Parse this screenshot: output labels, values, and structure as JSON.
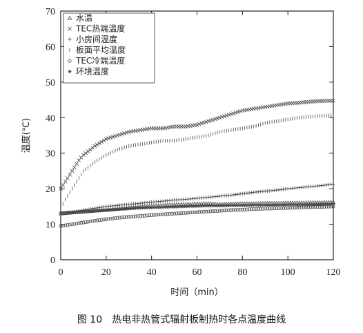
{
  "chart_data": {
    "type": "scatter",
    "xlabel": "时间（min）",
    "ylabel": "温度(℃)",
    "xlim": [
      0,
      120
    ],
    "ylim": [
      0,
      70
    ],
    "xticks": [
      0,
      20,
      40,
      60,
      80,
      100,
      120
    ],
    "yticks": [
      0,
      10,
      20,
      30,
      40,
      50,
      60,
      70
    ],
    "grid": false,
    "legend_position": "top-left",
    "series": [
      {
        "name": "水温",
        "marker": "triangle",
        "x": [
          0,
          5,
          10,
          15,
          20,
          25,
          30,
          35,
          40,
          45,
          50,
          55,
          60,
          65,
          70,
          75,
          80,
          85,
          90,
          95,
          100,
          105,
          110,
          115,
          120
        ],
        "y": [
          13,
          13.3,
          13.5,
          13.8,
          14,
          14.3,
          14.6,
          14.9,
          15.1,
          15.3,
          15.5,
          15.6,
          15.7,
          15.8,
          15.6,
          15.7,
          15.8,
          15.8,
          15.9,
          15.9,
          16,
          16,
          16.1,
          16.1,
          16.2
        ]
      },
      {
        "name": "TEC热端温度",
        "marker": "x",
        "x": [
          0,
          2,
          5,
          8,
          10,
          15,
          20,
          25,
          30,
          35,
          40,
          45,
          50,
          55,
          60,
          65,
          70,
          75,
          80,
          85,
          90,
          95,
          100,
          105,
          110,
          115,
          120
        ],
        "y": [
          20,
          22,
          25,
          28,
          29.5,
          32,
          34,
          35,
          36,
          36.5,
          37,
          37,
          37.5,
          37.5,
          38,
          39,
          40,
          41,
          42,
          42.5,
          43,
          43.5,
          44,
          44.2,
          44.5,
          44.7,
          44.8
        ]
      },
      {
        "name": "小房间温度",
        "marker": "plus",
        "x": [
          0,
          5,
          10,
          15,
          20,
          25,
          30,
          35,
          40,
          45,
          50,
          55,
          60,
          65,
          70,
          75,
          80,
          85,
          90,
          95,
          100,
          105,
          110,
          115,
          120
        ],
        "y": [
          13,
          13.5,
          14,
          14.5,
          15,
          15.3,
          15.6,
          15.9,
          16.2,
          16.5,
          16.8,
          17,
          17.3,
          17.6,
          17.9,
          18.2,
          18.6,
          19,
          19.3,
          19.6,
          20,
          20.3,
          20.6,
          20.9,
          21.3
        ]
      },
      {
        "name": "板面平均温度",
        "marker": "vline",
        "x": [
          0,
          2,
          5,
          8,
          10,
          15,
          20,
          25,
          30,
          35,
          40,
          45,
          50,
          55,
          60,
          65,
          70,
          75,
          80,
          85,
          90,
          95,
          100,
          105,
          110,
          115,
          120
        ],
        "y": [
          14.5,
          17,
          20,
          23,
          25,
          27.5,
          29.5,
          31,
          32,
          32.5,
          33,
          33.5,
          33.5,
          34,
          34.5,
          35,
          36,
          36.5,
          37,
          37.5,
          38.5,
          39,
          39.5,
          40,
          40.3,
          40.5,
          40.7
        ]
      },
      {
        "name": "TEC冷端温度",
        "marker": "circle",
        "x": [
          0,
          5,
          10,
          15,
          20,
          25,
          30,
          35,
          40,
          45,
          50,
          55,
          60,
          65,
          70,
          75,
          80,
          85,
          90,
          95,
          100,
          105,
          110,
          115,
          120
        ],
        "y": [
          9.5,
          10,
          10.5,
          11,
          11.4,
          11.8,
          12.1,
          12.3,
          12.6,
          12.8,
          13,
          13.2,
          13.4,
          13.6,
          13.8,
          14,
          14.1,
          14.3,
          14.4,
          14.5,
          14.6,
          14.7,
          14.8,
          14.9,
          15
        ]
      },
      {
        "name": "环境温度",
        "marker": "star",
        "x": [
          0,
          5,
          10,
          15,
          20,
          25,
          30,
          35,
          40,
          45,
          50,
          55,
          60,
          65,
          70,
          75,
          80,
          85,
          90,
          95,
          100,
          105,
          110,
          115,
          120
        ],
        "y": [
          13.2,
          13.4,
          13.6,
          13.8,
          14,
          14.2,
          14.4,
          14.6,
          14.7,
          14.8,
          14.9,
          15,
          15.1,
          15.2,
          15.2,
          15.3,
          15.3,
          15.4,
          15.4,
          15.4,
          15.5,
          15.5,
          15.5,
          15.6,
          15.6
        ]
      }
    ]
  },
  "caption": "图 10　热电非热管式辐射板制热时各点温度曲线"
}
